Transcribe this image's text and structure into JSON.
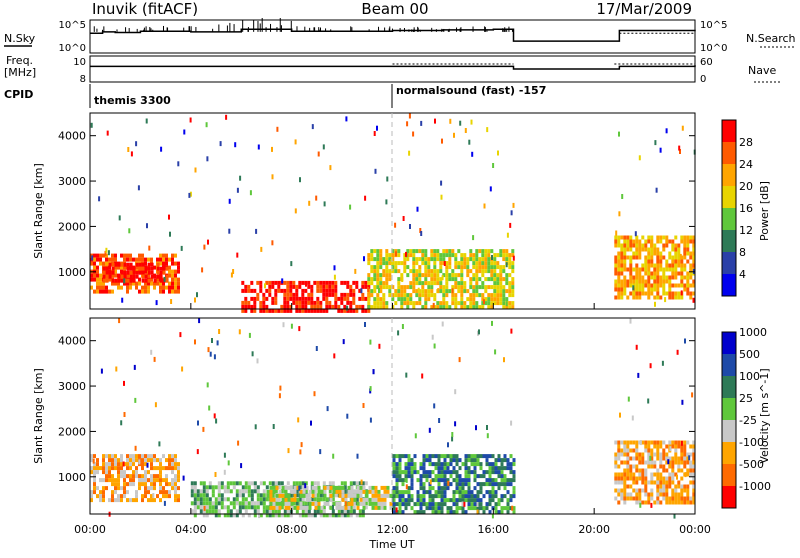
{
  "header": {
    "radar": "Inuvik (fitACF)",
    "beam": "Beam 00",
    "date": "17/Mar/2009"
  },
  "panel_labels": {
    "nsky": "N.Sky",
    "nsearch": "N.Search",
    "freq": "Freq.",
    "freq_unit": "[MHz]",
    "nave": "Nave",
    "cpid": "CPID"
  },
  "top_ticks": {
    "nsky_top": "10^5",
    "nsky_bottom": "10^0",
    "nsearch_top": "10^5",
    "nsearch_bottom": "10^0",
    "freq_top": "10",
    "freq_bottom": "8",
    "nave_top": "60",
    "nave_bottom": "0"
  },
  "cpid_labels": [
    {
      "text": "themis 3300",
      "start_hour": 0
    },
    {
      "text": "normalsound (fast) -157",
      "start_hour": 12
    }
  ],
  "x_axis": {
    "label": "Time UT",
    "ticks": [
      "00:00",
      "04:00",
      "08:00",
      "12:00",
      "16:00",
      "20:00",
      "00:00"
    ],
    "range_hours": [
      0,
      24
    ]
  },
  "y_axis": {
    "label": "Slant Range [km]",
    "ticks": [
      "1000",
      "2000",
      "3000",
      "4000"
    ],
    "range_km": [
      180,
      4500
    ]
  },
  "power_scale": {
    "label": "Power [dB]",
    "ticks": [
      "4",
      "8",
      "12",
      "16",
      "20",
      "24",
      "28"
    ],
    "range": [
      0,
      32
    ],
    "colors": [
      "#0000ee",
      "#2a40a8",
      "#2e7a57",
      "#5fc73b",
      "#e8d400",
      "#ffa500",
      "#ff5a00",
      "#ff0000"
    ]
  },
  "velocity_scale": {
    "label": "Velocity [m s^-1]",
    "ticks": [
      "1000",
      "500",
      "100",
      "25",
      "-25",
      "-100",
      "-500",
      "-1000"
    ],
    "colors": [
      "#0000cc",
      "#1e4aa8",
      "#2e7a57",
      "#5fc73b",
      "#c8c8c8",
      "#ffa500",
      "#ff6a00",
      "#ff0000"
    ]
  },
  "chart_data": [
    {
      "type": "line",
      "name": "N.Sky",
      "ylim": [
        0,
        5
      ],
      "log": true,
      "x_hours": [
        0,
        0.5,
        1,
        2,
        4,
        6,
        8,
        12,
        14,
        16,
        16.8,
        21,
        24
      ],
      "values": [
        3,
        3.2,
        3.1,
        3.3,
        3.2,
        3.6,
        3.3,
        3.4,
        3.5,
        3.6,
        1.8,
        3.4,
        3.3
      ]
    },
    {
      "type": "line",
      "name": "Freq.",
      "ylim": [
        8,
        10
      ],
      "x_hours": [
        0,
        12,
        16.8,
        21,
        24
      ],
      "values": [
        9.2,
        9.2,
        9.0,
        9.2,
        9.3
      ]
    },
    {
      "type": "heatmap",
      "name": "Power",
      "x_range_hours": [
        0,
        24
      ],
      "y_range_km": [
        180,
        4500
      ],
      "z_range_db": [
        0,
        32
      ],
      "regions": [
        {
          "t0": 0.0,
          "t1": 3.5,
          "r0": 600,
          "r1": 1400,
          "level": 6
        },
        {
          "t0": 0.5,
          "t1": 3.0,
          "r0": 800,
          "r1": 1200,
          "level": 7
        },
        {
          "t0": 6.0,
          "t1": 11.0,
          "r0": 180,
          "r1": 800,
          "level": 7
        },
        {
          "t0": 11.0,
          "t1": 16.8,
          "r0": 200,
          "r1": 1500,
          "level": 4
        },
        {
          "t0": 20.8,
          "t1": 24.0,
          "r0": 400,
          "r1": 1800,
          "level": 5
        }
      ]
    },
    {
      "type": "heatmap",
      "name": "Velocity",
      "x_range_hours": [
        0,
        24
      ],
      "y_range_km": [
        180,
        4500
      ],
      "regions": [
        {
          "t0": 0.0,
          "t1": 3.5,
          "r0": 500,
          "r1": 1500,
          "level": 5
        },
        {
          "t0": 4.0,
          "t1": 11.0,
          "r0": 180,
          "r1": 900,
          "level": 3
        },
        {
          "t0": 7.0,
          "t1": 12.0,
          "r0": 300,
          "r1": 800,
          "level": 4
        },
        {
          "t0": 12.0,
          "t1": 16.8,
          "r0": 200,
          "r1": 1500,
          "level": 2
        },
        {
          "t0": 20.8,
          "t1": 24.0,
          "r0": 400,
          "r1": 1800,
          "level": 5
        }
      ]
    }
  ]
}
